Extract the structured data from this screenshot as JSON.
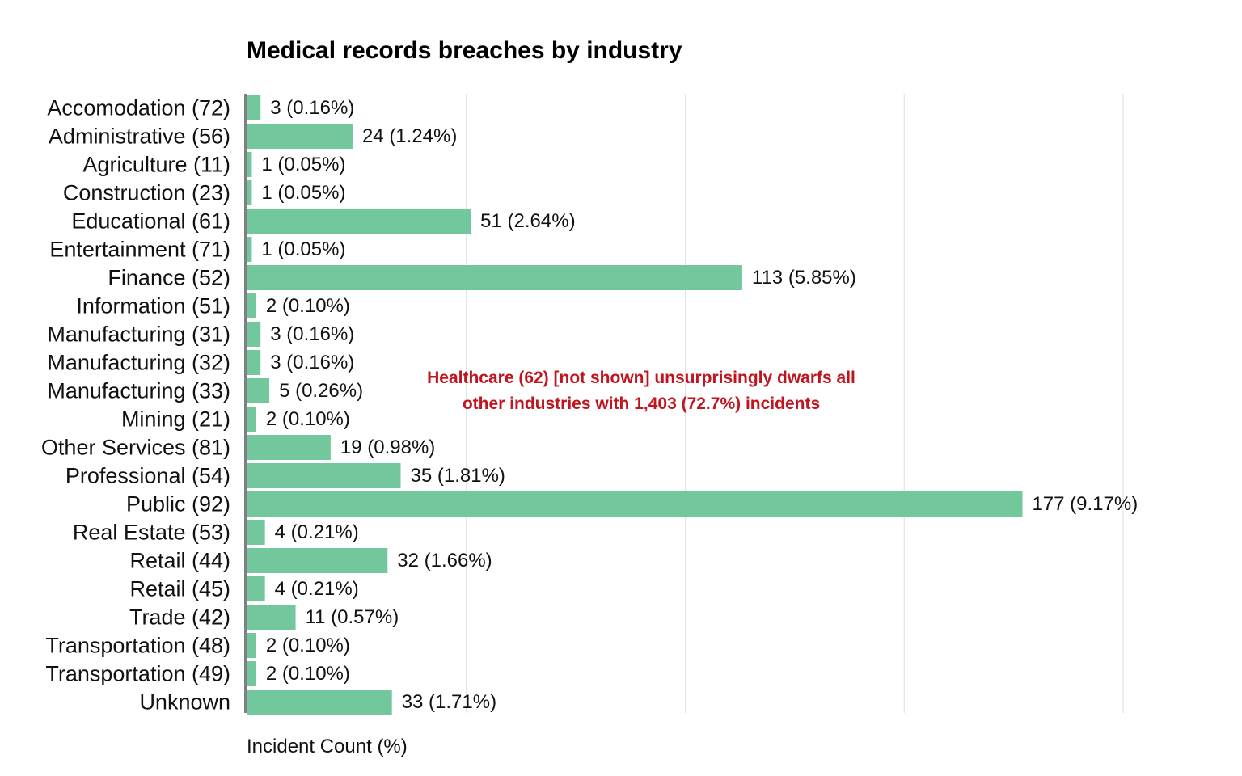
{
  "chart_data": {
    "type": "bar",
    "orientation": "horizontal",
    "title": "Medical records breaches by industry",
    "xlabel": "Incident Count (%)",
    "ylabel": "",
    "xlim": [
      0,
      200
    ],
    "grid": true,
    "bar_color": "#72c79d",
    "categories": [
      "Accomodation (72)",
      "Administrative (56)",
      "Agriculture (11)",
      "Construction (23)",
      "Educational (61)",
      "Entertainment (71)",
      "Finance (52)",
      "Information (51)",
      "Manufacturing (31)",
      "Manufacturing (32)",
      "Manufacturing (33)",
      "Mining (21)",
      "Other Services (81)",
      "Professional (54)",
      "Public (92)",
      "Real Estate (53)",
      "Retail (44)",
      "Retail (45)",
      "Trade (42)",
      "Transportation (48)",
      "Transportation (49)",
      "Unknown"
    ],
    "values": [
      3,
      24,
      1,
      1,
      51,
      1,
      113,
      2,
      3,
      3,
      5,
      2,
      19,
      35,
      177,
      4,
      32,
      4,
      11,
      2,
      2,
      33
    ],
    "data_labels": [
      "3 (0.16%)",
      "24 (1.24%)",
      "1 (0.05%)",
      "1 (0.05%)",
      "51 (2.64%)",
      "1 (0.05%)",
      "113 (5.85%)",
      "2 (0.10%)",
      "3 (0.16%)",
      "3 (0.16%)",
      "5 (0.26%)",
      "2 (0.10%)",
      "19 (0.98%)",
      "35 (1.81%)",
      "177 (9.17%)",
      "4 (0.21%)",
      "32 (1.66%)",
      "4 (0.21%)",
      "11 (0.57%)",
      "2 (0.10%)",
      "2 (0.10%)",
      "33 (1.71%)"
    ],
    "annotation": {
      "lines": [
        "Healthcare (62) [not shown] unsurprisingly dwarfs all",
        "other industries with 1,403 (72.7%) incidents"
      ],
      "color": "#c0141e"
    }
  }
}
